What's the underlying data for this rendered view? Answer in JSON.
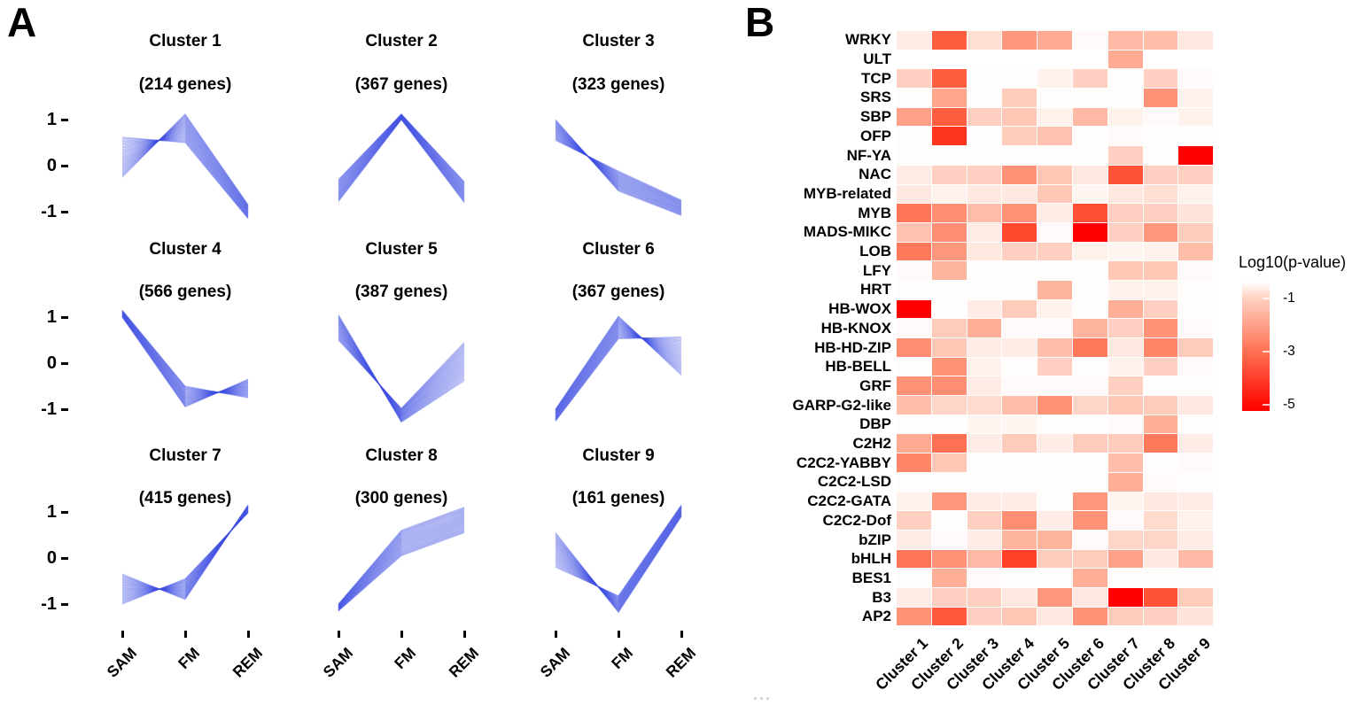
{
  "figure": {
    "panel_a_label": "A",
    "panel_b_label": "B",
    "faint_text": "..."
  },
  "chart_data": [
    {
      "type": "line",
      "panel": "A",
      "x_categories": [
        "SAM",
        "FM",
        "REM"
      ],
      "y_ticks": [
        "1",
        "0",
        "-1"
      ],
      "ylim": [
        -1.3,
        1.3
      ],
      "line_color": "#3E4FE1",
      "clusters": [
        {
          "title": "Cluster 1",
          "genes": "(214 genes)",
          "band": {
            "SAM": [
              -0.25,
              0.62
            ],
            "FM": [
              0.5,
              1.12
            ],
            "REM": [
              -1.15,
              -0.85
            ]
          },
          "flip": [
            1,
            0,
            0
          ]
        },
        {
          "title": "Cluster 2",
          "genes": "(367 genes)",
          "band": {
            "SAM": [
              -0.78,
              -0.3
            ],
            "FM": [
              1.0,
              1.12
            ],
            "REM": [
              -0.8,
              -0.35
            ]
          },
          "flip": [
            0,
            0,
            0
          ]
        },
        {
          "title": "Cluster 3",
          "genes": "(323 genes)",
          "band": {
            "SAM": [
              0.55,
              1.0
            ],
            "FM": [
              -0.55,
              -0.12
            ],
            "REM": [
              -1.08,
              -0.75
            ]
          },
          "flip": [
            1,
            0,
            0
          ]
        },
        {
          "title": "Cluster 4",
          "genes": "(566 genes)",
          "band": {
            "SAM": [
              1.0,
              1.15
            ],
            "FM": [
              -0.95,
              -0.5
            ],
            "REM": [
              -0.75,
              -0.35
            ]
          },
          "flip": [
            0,
            0,
            1
          ]
        },
        {
          "title": "Cluster 5",
          "genes": "(387 genes)",
          "band": {
            "SAM": [
              0.5,
              1.05
            ],
            "FM": [
              -1.28,
              -0.98
            ],
            "REM": [
              -0.38,
              0.45
            ]
          },
          "flip": [
            1,
            0,
            0
          ]
        },
        {
          "title": "Cluster 6",
          "genes": "(367 genes)",
          "band": {
            "SAM": [
              -1.26,
              -1.0
            ],
            "FM": [
              0.53,
              1.02
            ],
            "REM": [
              -0.26,
              0.57
            ]
          },
          "flip": [
            0,
            0,
            1
          ]
        },
        {
          "title": "Cluster 7",
          "genes": "(415 genes)",
          "band": {
            "SAM": [
              -1.0,
              -0.35
            ],
            "FM": [
              -0.9,
              -0.45
            ],
            "REM": [
              0.98,
              1.15
            ]
          },
          "flip": [
            0,
            1,
            0
          ]
        },
        {
          "title": "Cluster 8",
          "genes": "(300 genes)",
          "band": {
            "SAM": [
              -1.15,
              -1.0
            ],
            "FM": [
              0.05,
              0.6
            ],
            "REM": [
              0.55,
              1.1
            ]
          },
          "flip": [
            0,
            0,
            0
          ]
        },
        {
          "title": "Cluster 9",
          "genes": "(161 genes)",
          "band": {
            "SAM": [
              -0.2,
              0.55
            ],
            "FM": [
              -1.18,
              -0.82
            ],
            "REM": [
              0.9,
              1.15
            ]
          },
          "flip": [
            1,
            0,
            0
          ]
        }
      ]
    },
    {
      "type": "heatmap",
      "panel": "B",
      "rows": [
        "WRKY",
        "ULT",
        "TCP",
        "SRS",
        "SBP",
        "OFP",
        "NF-YA",
        "NAC",
        "MYB-related",
        "MYB",
        "MADS-MIKC",
        "LOB",
        "LFY",
        "HRT",
        "HB-WOX",
        "HB-KNOX",
        "HB-HD-ZIP",
        "HB-BELL",
        "GRF",
        "GARP-G2-like",
        "DBP",
        "C2H2",
        "C2C2-YABBY",
        "C2C2-LSD",
        "C2C2-GATA",
        "C2C2-Dof",
        "bZIP",
        "bHLH",
        "BES1",
        "B3",
        "AP2"
      ],
      "columns": [
        "Cluster 1",
        "Cluster 2",
        "Cluster 3",
        "Cluster 4",
        "Cluster 5",
        "Cluster 6",
        "Cluster 7",
        "Cluster 8",
        "Cluster 9"
      ],
      "values_neg_log10_p": [
        [
          0.4,
          3.4,
          0.7,
          2.2,
          1.8,
          0.1,
          1.5,
          1.4,
          0.5
        ],
        [
          0.0,
          0.0,
          0.0,
          0.0,
          0.0,
          0.0,
          1.8,
          0.0,
          0.0
        ],
        [
          1.0,
          3.4,
          0.05,
          0.05,
          0.3,
          1.0,
          0.05,
          1.0,
          0.1
        ],
        [
          0.05,
          1.9,
          0.05,
          1.1,
          0.05,
          0.05,
          0.05,
          2.3,
          0.3
        ],
        [
          2.0,
          3.4,
          1.0,
          1.2,
          0.3,
          1.5,
          0.3,
          0.1,
          0.3
        ],
        [
          0.05,
          4.2,
          0.05,
          1.1,
          1.3,
          0.05,
          0.1,
          0.05,
          0.05
        ],
        [
          0.05,
          0.05,
          0.05,
          0.05,
          0.05,
          0.05,
          1.0,
          0.05,
          5.2
        ],
        [
          0.4,
          1.0,
          1.0,
          2.3,
          1.2,
          0.5,
          3.6,
          1.0,
          1.0
        ],
        [
          0.5,
          0.3,
          0.5,
          0.5,
          1.2,
          0.2,
          0.5,
          0.7,
          0.3
        ],
        [
          2.9,
          2.4,
          1.4,
          2.3,
          0.4,
          3.7,
          1.0,
          1.0,
          0.6
        ],
        [
          1.3,
          2.4,
          0.4,
          3.8,
          0.1,
          5.2,
          1.0,
          2.2,
          1.1
        ],
        [
          2.8,
          2.2,
          0.5,
          1.0,
          1.0,
          0.3,
          0.2,
          0.3,
          1.4
        ],
        [
          0.1,
          1.6,
          0.05,
          0.05,
          0.05,
          0.05,
          1.2,
          1.2,
          0.1
        ],
        [
          0.05,
          0.05,
          0.05,
          0.05,
          1.6,
          0.05,
          0.3,
          0.3,
          0.05
        ],
        [
          5.2,
          0.05,
          0.4,
          1.1,
          0.3,
          0.05,
          1.7,
          1.0,
          0.05
        ],
        [
          0.1,
          1.1,
          1.7,
          0.1,
          0.1,
          1.6,
          1.0,
          2.3,
          0.1
        ],
        [
          2.4,
          1.2,
          0.4,
          0.4,
          1.4,
          2.8,
          0.5,
          2.6,
          1.1
        ],
        [
          0.05,
          2.3,
          0.3,
          0.05,
          1.0,
          0.05,
          0.3,
          1.0,
          0.1
        ],
        [
          2.3,
          2.4,
          0.4,
          0.1,
          0.1,
          0.1,
          1.0,
          0.05,
          0.05
        ],
        [
          1.4,
          0.9,
          0.8,
          1.4,
          2.3,
          0.9,
          1.2,
          1.1,
          0.5
        ],
        [
          0.05,
          0.05,
          0.2,
          0.2,
          0.05,
          0.05,
          0.1,
          1.7,
          0.05
        ],
        [
          1.8,
          3.0,
          0.4,
          1.1,
          0.4,
          1.1,
          1.1,
          2.8,
          0.4
        ],
        [
          2.6,
          1.2,
          0.05,
          0.05,
          0.05,
          0.05,
          1.4,
          0.05,
          0.1
        ],
        [
          0.05,
          0.05,
          0.05,
          0.05,
          0.05,
          0.05,
          1.7,
          0.1,
          0.05
        ],
        [
          0.3,
          2.2,
          0.4,
          0.4,
          0.05,
          2.2,
          0.2,
          0.5,
          0.4
        ],
        [
          1.0,
          0.05,
          1.0,
          2.4,
          0.4,
          2.3,
          0.1,
          0.8,
          0.3
        ],
        [
          0.4,
          0.1,
          0.4,
          1.6,
          1.6,
          0.1,
          0.9,
          0.9,
          0.4
        ],
        [
          2.9,
          2.3,
          1.5,
          4.0,
          1.1,
          1.1,
          2.0,
          0.5,
          1.5
        ],
        [
          0.05,
          1.7,
          0.1,
          0.05,
          0.05,
          1.7,
          0.05,
          0.05,
          0.05
        ],
        [
          0.4,
          1.0,
          1.0,
          0.5,
          2.2,
          0.5,
          5.2,
          3.6,
          1.1
        ],
        [
          2.3,
          3.5,
          1.0,
          1.2,
          0.5,
          2.3,
          1.1,
          1.0,
          0.6
        ]
      ],
      "legend": {
        "title": "Log10(p-value)",
        "tick_labels": [
          "-1",
          "-3",
          "-5"
        ],
        "tick_values": [
          -1,
          -3,
          -5
        ]
      },
      "colormap": {
        "low": "#FFFFFF",
        "high": "#FF0000"
      }
    }
  ]
}
